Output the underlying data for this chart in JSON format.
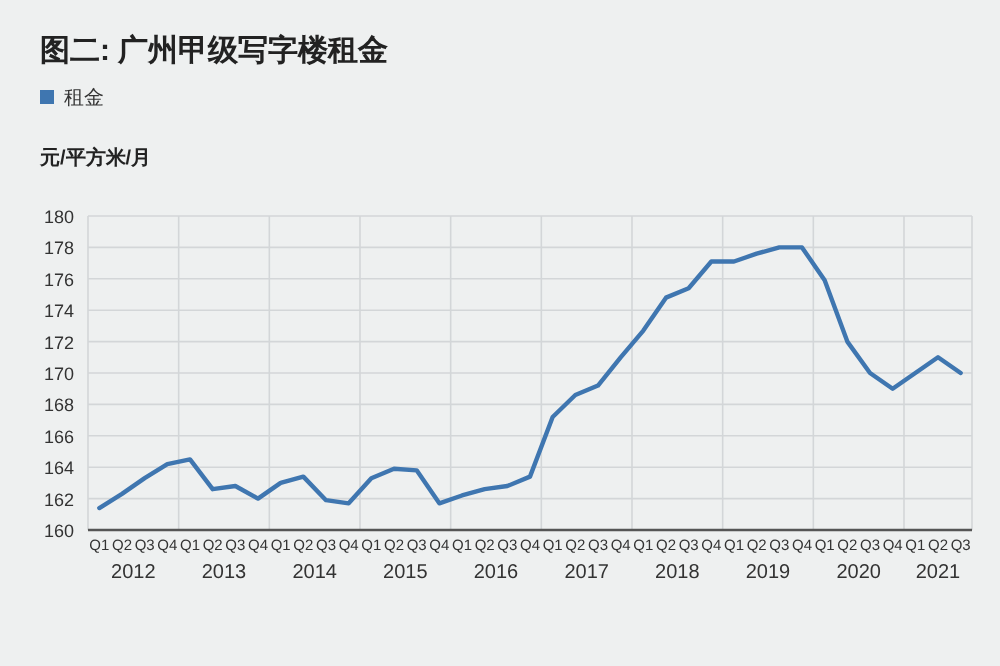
{
  "chart_data": {
    "type": "line",
    "title": "图二: 广州甲级写字楼租金",
    "ylabel": "元/平方米/月",
    "categories": [
      "Q1",
      "Q2",
      "Q3",
      "Q4",
      "Q1",
      "Q2",
      "Q3",
      "Q4",
      "Q1",
      "Q2",
      "Q3",
      "Q4",
      "Q1",
      "Q2",
      "Q3",
      "Q4",
      "Q1",
      "Q2",
      "Q3",
      "Q4",
      "Q1",
      "Q2",
      "Q3",
      "Q4",
      "Q1",
      "Q2",
      "Q3",
      "Q4",
      "Q1",
      "Q2",
      "Q3",
      "Q4",
      "Q1",
      "Q2",
      "Q3",
      "Q4",
      "Q1",
      "Q2",
      "Q3"
    ],
    "series": [
      {
        "name": "租金",
        "color": "#3f76b0",
        "values": [
          161.4,
          162.3,
          163.3,
          164.2,
          164.5,
          162.6,
          162.8,
          162.0,
          163.0,
          163.4,
          161.9,
          161.7,
          163.3,
          163.9,
          163.8,
          161.7,
          162.2,
          162.6,
          162.8,
          163.4,
          167.2,
          168.6,
          169.2,
          171.0,
          172.7,
          174.8,
          175.4,
          177.1,
          177.1,
          177.6,
          178.0,
          178.0,
          175.9,
          172.0,
          170.0,
          169.0,
          170.0,
          171.0,
          170.0
        ]
      }
    ],
    "annotations": [
      "2012",
      "2013",
      "2014",
      "2015",
      "2016",
      "2017",
      "2018",
      "2019",
      "2020",
      "2021"
    ],
    "ylim": [
      160,
      180
    ],
    "yticks": [
      160,
      162,
      164,
      166,
      168,
      170,
      172,
      174,
      176,
      178,
      180
    ],
    "grid": true,
    "legend": "top left",
    "marker": "none",
    "line_style": "solid"
  }
}
